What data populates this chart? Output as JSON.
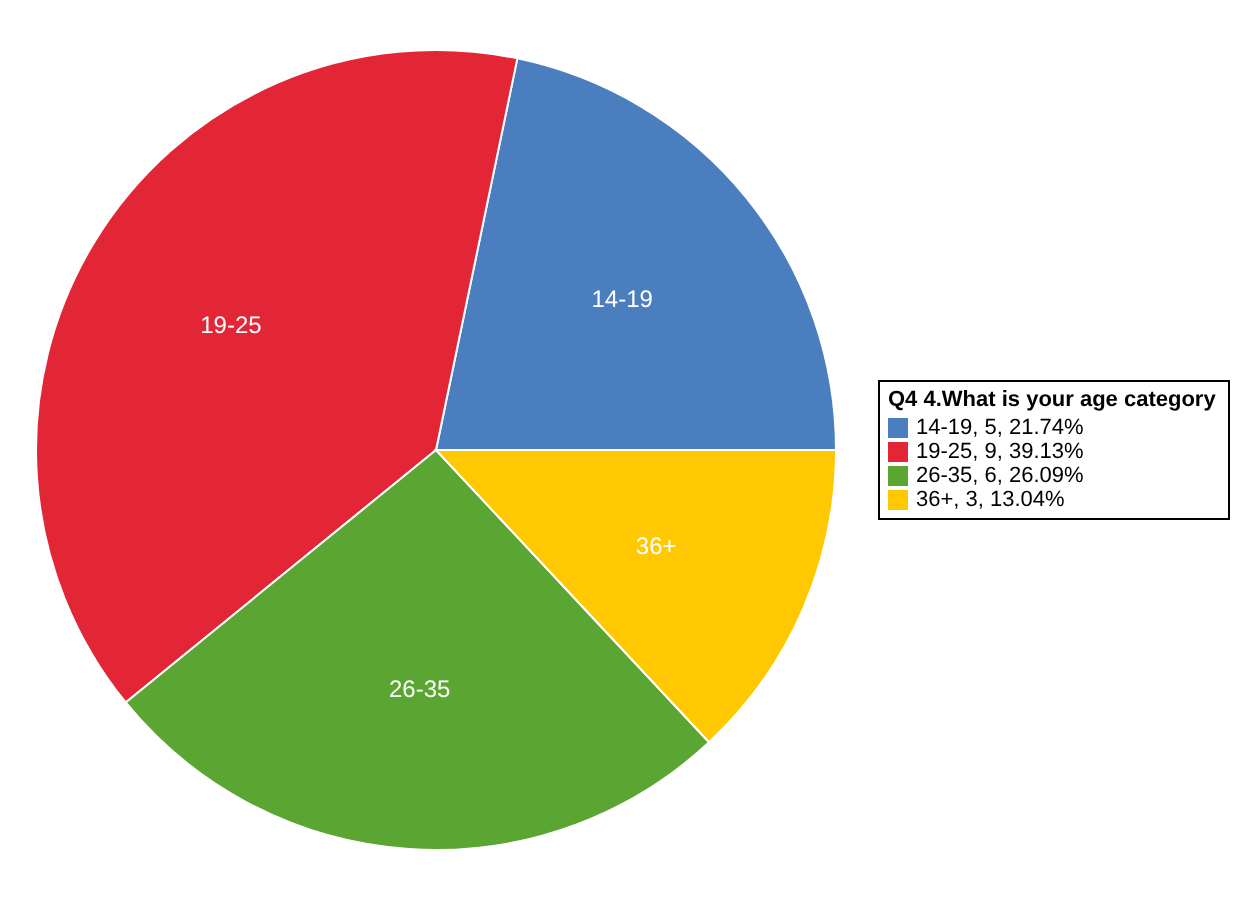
{
  "chart_data": {
    "type": "pie",
    "legend_title": "Q4 4.What is your age category",
    "categories": [
      "14-19",
      "19-25",
      "26-35",
      "36+"
    ],
    "values": [
      21.74,
      39.13,
      26.09,
      13.04
    ],
    "value_labels": [
      ", 5, 21.74%",
      ", 9, 39.13%",
      ", 6, 26.09%",
      ", 3, 13.04%"
    ],
    "colors": [
      "#4a7ebf",
      "#e32636",
      "#5ba533",
      "#ffc800"
    ],
    "legend": "right"
  }
}
